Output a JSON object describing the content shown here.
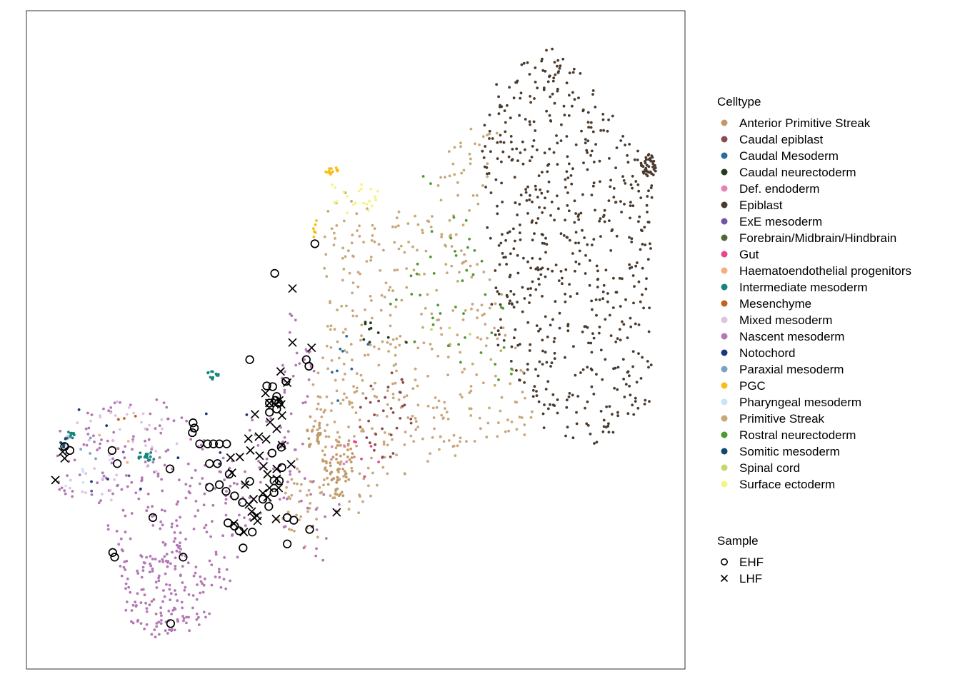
{
  "chart_data": {
    "type": "scatter",
    "title": "",
    "xlabel": "",
    "ylabel": "",
    "grid": false,
    "axes_visible": false,
    "legend_placement": "right",
    "legend_celltype": {
      "title": "Celltype",
      "entries": [
        {
          "label": "Anterior Primitive Streak",
          "color": "#c19a6b"
        },
        {
          "label": "Caudal epiblast",
          "color": "#8b4b4b"
        },
        {
          "label": "Caudal Mesoderm",
          "color": "#2e6a9e"
        },
        {
          "label": "Caudal neurectoderm",
          "color": "#233d1c"
        },
        {
          "label": "Def. endoderm",
          "color": "#e882b4"
        },
        {
          "label": "Epiblast",
          "color": "#4b3b2d"
        },
        {
          "label": "ExE mesoderm",
          "color": "#6f56a3"
        },
        {
          "label": "Forebrain/Midbrain/Hindbrain",
          "color": "#4b6836"
        },
        {
          "label": "Gut",
          "color": "#e8468c"
        },
        {
          "label": "Haematoendothelial progenitors",
          "color": "#f3af80"
        },
        {
          "label": "Intermediate mesoderm",
          "color": "#15867c"
        },
        {
          "label": "Mesenchyme",
          "color": "#c4621f"
        },
        {
          "label": "Mixed mesoderm",
          "color": "#dcc3e0"
        },
        {
          "label": "Nascent mesoderm",
          "color": "#b378b5"
        },
        {
          "label": "Notochord",
          "color": "#1b3484"
        },
        {
          "label": "Paraxial mesoderm",
          "color": "#7aa2c4"
        },
        {
          "label": "PGC",
          "color": "#f7be17"
        },
        {
          "label": "Pharyngeal mesoderm",
          "color": "#c8e4f6"
        },
        {
          "label": "Primitive Streak",
          "color": "#c9a77b"
        },
        {
          "label": "Rostral neurectoderm",
          "color": "#4e9a2e"
        },
        {
          "label": "Somitic mesoderm",
          "color": "#0d4a6b"
        },
        {
          "label": "Spinal cord",
          "color": "#c2d96b"
        },
        {
          "label": "Surface ectoderm",
          "color": "#f5f384"
        }
      ]
    },
    "legend_sample": {
      "title": "Sample",
      "entries": [
        {
          "label": "EHF",
          "shape": "circle"
        },
        {
          "label": "LHF",
          "shape": "cross"
        }
      ]
    },
    "xlim": [
      0,
      100
    ],
    "ylim": [
      0,
      100
    ],
    "clusters": [
      {
        "celltype": "Epiblast",
        "n": 620,
        "shape": "poly",
        "poly": [
          [
            74,
            92
          ],
          [
            79,
            95
          ],
          [
            86,
            89
          ],
          [
            93,
            79
          ],
          [
            95,
            76
          ],
          [
            95,
            40
          ],
          [
            88,
            35
          ],
          [
            86,
            34
          ],
          [
            79,
            36
          ],
          [
            75,
            41
          ],
          [
            72,
            47
          ],
          [
            70,
            55
          ],
          [
            70,
            66
          ],
          [
            69,
            79
          ],
          [
            70,
            88
          ]
        ]
      },
      {
        "celltype": "Epiblast",
        "n": 40,
        "shape": "ellipse",
        "cx": 94.5,
        "cy": 76.5,
        "rx": 1.2,
        "ry": 1.8
      },
      {
        "celltype": "Primitive Streak",
        "n": 430,
        "shape": "poly",
        "poly": [
          [
            65,
            83
          ],
          [
            72,
            83
          ],
          [
            71,
            76
          ],
          [
            68,
            68
          ],
          [
            73,
            55
          ],
          [
            78,
            36
          ],
          [
            70,
            33
          ],
          [
            62,
            32
          ],
          [
            55,
            27
          ],
          [
            49,
            21
          ],
          [
            44,
            20
          ],
          [
            44,
            40
          ],
          [
            46,
            55
          ],
          [
            44,
            66
          ],
          [
            47,
            72
          ],
          [
            50,
            73
          ],
          [
            57,
            70
          ],
          [
            62,
            73
          ]
        ]
      },
      {
        "celltype": "Primitive Streak",
        "n": 70,
        "shape": "poly",
        "poly": [
          [
            44,
            45
          ],
          [
            50,
            55
          ],
          [
            51,
            42
          ],
          [
            48,
            30
          ],
          [
            45,
            21
          ],
          [
            42,
            15
          ],
          [
            38,
            22
          ],
          [
            41,
            35
          ]
        ]
      },
      {
        "celltype": "Anterior Primitive Streak",
        "n": 55,
        "shape": "ellipse",
        "cx": 47.5,
        "cy": 31,
        "rx": 2.5,
        "ry": 5
      },
      {
        "celltype": "Anterior Primitive Streak",
        "n": 20,
        "shape": "ellipse",
        "cx": 43.5,
        "cy": 36,
        "rx": 1.2,
        "ry": 2.5
      },
      {
        "celltype": "Nascent mesoderm",
        "n": 340,
        "shape": "poly",
        "poly": [
          [
            4,
            36
          ],
          [
            9,
            39
          ],
          [
            15,
            41
          ],
          [
            21,
            41
          ],
          [
            26,
            36
          ],
          [
            31,
            33
          ],
          [
            34,
            38
          ],
          [
            38,
            46
          ],
          [
            40,
            56
          ],
          [
            44,
            46
          ],
          [
            42,
            30
          ],
          [
            48,
            25
          ],
          [
            45,
            16
          ],
          [
            40,
            20
          ],
          [
            37,
            25
          ],
          [
            34,
            22
          ],
          [
            30,
            10
          ],
          [
            26,
            6
          ],
          [
            20,
            5
          ],
          [
            16,
            8
          ],
          [
            14,
            18
          ],
          [
            9,
            25
          ],
          [
            5,
            27
          ]
        ]
      },
      {
        "celltype": "Nascent mesoderm",
        "n": 120,
        "shape": "poly",
        "poly": [
          [
            14,
            18
          ],
          [
            19,
            17
          ],
          [
            22,
            21
          ],
          [
            27,
            13
          ],
          [
            30,
            10
          ],
          [
            26,
            7
          ],
          [
            22,
            4
          ],
          [
            17,
            5
          ],
          [
            15,
            8
          ]
        ]
      },
      {
        "celltype": "Mixed mesoderm",
        "n": 45,
        "shape": "poly",
        "poly": [
          [
            4,
            36
          ],
          [
            12,
            41
          ],
          [
            20,
            40
          ],
          [
            24,
            33
          ],
          [
            18,
            27
          ],
          [
            10,
            24
          ],
          [
            5,
            28
          ]
        ]
      },
      {
        "celltype": "Intermediate mesoderm",
        "n": 18,
        "shape": "ellipse",
        "cx": 18.2,
        "cy": 32.3,
        "rx": 1.5,
        "ry": 0.7
      },
      {
        "celltype": "Intermediate mesoderm",
        "n": 12,
        "shape": "ellipse",
        "cx": 28.2,
        "cy": 44.6,
        "rx": 1.0,
        "ry": 0.6
      },
      {
        "celltype": "Intermediate mesoderm",
        "n": 10,
        "shape": "ellipse",
        "cx": 6.6,
        "cy": 35.5,
        "rx": 0.8,
        "ry": 0.6
      },
      {
        "celltype": "Somitic mesoderm",
        "n": 8,
        "shape": "ellipse",
        "cx": 5.5,
        "cy": 34.4,
        "rx": 0.6,
        "ry": 1.0
      },
      {
        "celltype": "Rostral neurectoderm",
        "n": 45,
        "shape": "poly",
        "poly": [
          [
            60,
            78
          ],
          [
            63,
            70
          ],
          [
            70,
            68
          ],
          [
            73,
            52
          ],
          [
            75,
            41
          ],
          [
            64,
            47
          ],
          [
            58,
            47
          ],
          [
            55,
            55
          ],
          [
            60,
            65
          ]
        ]
      },
      {
        "celltype": "PGC",
        "n": 14,
        "shape": "ellipse",
        "cx": 46.4,
        "cy": 75.7,
        "rx": 1.0,
        "ry": 0.6
      },
      {
        "celltype": "PGC",
        "n": 6,
        "shape": "ellipse",
        "cx": 43.9,
        "cy": 66.5,
        "rx": 0.6,
        "ry": 2.0
      },
      {
        "celltype": "Surface ectoderm",
        "n": 22,
        "shape": "ellipse",
        "cx": 49.5,
        "cy": 72.0,
        "rx": 4.0,
        "ry": 3.0
      },
      {
        "celltype": "Caudal epiblast",
        "n": 35,
        "shape": "poly",
        "poly": [
          [
            52,
            45
          ],
          [
            57,
            46
          ],
          [
            59,
            35
          ],
          [
            55,
            31
          ],
          [
            52,
            33
          ],
          [
            50,
            37
          ]
        ]
      },
      {
        "celltype": "Caudal neurectoderm",
        "n": 10,
        "shape": "ellipse",
        "cx": 55,
        "cy": 50,
        "rx": 5,
        "ry": 4
      },
      {
        "celltype": "Caudal Mesoderm",
        "n": 8,
        "shape": "ellipse",
        "cx": 48,
        "cy": 44,
        "rx": 8,
        "ry": 8
      },
      {
        "celltype": "Notochord",
        "n": 10,
        "shape": "ellipse",
        "cx": 20,
        "cy": 35,
        "rx": 15,
        "ry": 10
      },
      {
        "celltype": "Gut",
        "n": 6,
        "shape": "ellipse",
        "cx": 50,
        "cy": 32,
        "rx": 4,
        "ry": 4
      },
      {
        "celltype": "Def. endoderm",
        "n": 5,
        "shape": "ellipse",
        "cx": 48,
        "cy": 33,
        "rx": 3,
        "ry": 2
      },
      {
        "celltype": "Paraxial mesoderm",
        "n": 6,
        "shape": "ellipse",
        "cx": 10,
        "cy": 33,
        "rx": 4,
        "ry": 4
      },
      {
        "celltype": "Pharyngeal mesoderm",
        "n": 5,
        "shape": "ellipse",
        "cx": 9,
        "cy": 30,
        "rx": 5,
        "ry": 4
      },
      {
        "celltype": "Mesenchyme",
        "n": 3,
        "shape": "ellipse",
        "cx": 15,
        "cy": 38,
        "rx": 3,
        "ry": 2
      },
      {
        "celltype": "Spinal cord",
        "n": 3,
        "shape": "ellipse",
        "cx": 65,
        "cy": 50,
        "rx": 5,
        "ry": 5
      },
      {
        "celltype": "ExE mesoderm",
        "n": 3,
        "shape": "ellipse",
        "cx": 12,
        "cy": 30,
        "rx": 5,
        "ry": 4
      },
      {
        "celltype": "Haematoendothelial progenitors",
        "n": 3,
        "shape": "ellipse",
        "cx": 13,
        "cy": 33,
        "rx": 4,
        "ry": 3
      }
    ],
    "samples": [
      {
        "label": "EHF",
        "points": [
          [
            43.8,
            64.6
          ],
          [
            37.7,
            60.1
          ],
          [
            33.9,
            47.0
          ],
          [
            42.5,
            47.0
          ],
          [
            42.9,
            46.0
          ],
          [
            39.4,
            43.7
          ],
          [
            36.5,
            43.0
          ],
          [
            37.4,
            42.9
          ],
          [
            38.0,
            41.4
          ],
          [
            37.8,
            40.8
          ],
          [
            36.9,
            40.4
          ],
          [
            38.3,
            40.4
          ],
          [
            38.0,
            39.5
          ],
          [
            36.9,
            39.0
          ],
          [
            25.3,
            37.4
          ],
          [
            25.5,
            36.6
          ],
          [
            25.2,
            35.9
          ],
          [
            26.3,
            34.2
          ],
          [
            27.5,
            34.2
          ],
          [
            28.4,
            34.2
          ],
          [
            29.3,
            34.2
          ],
          [
            30.4,
            34.2
          ],
          [
            38.7,
            33.7
          ],
          [
            5.8,
            33.8
          ],
          [
            6.6,
            33.2
          ],
          [
            13.0,
            33.2
          ],
          [
            37.3,
            32.8
          ],
          [
            13.8,
            31.2
          ],
          [
            27.8,
            31.2
          ],
          [
            29.0,
            31.2
          ],
          [
            21.8,
            30.4
          ],
          [
            38.8,
            30.6
          ],
          [
            30.8,
            29.6
          ],
          [
            33.9,
            28.5
          ],
          [
            37.6,
            28.6
          ],
          [
            38.4,
            28.6
          ],
          [
            29.3,
            28.0
          ],
          [
            27.8,
            27.6
          ],
          [
            30.3,
            27.0
          ],
          [
            37.6,
            26.8
          ],
          [
            31.6,
            26.3
          ],
          [
            32.8,
            25.3
          ],
          [
            35.9,
            25.8
          ],
          [
            36.8,
            24.7
          ],
          [
            19.2,
            23.0
          ],
          [
            39.6,
            23.0
          ],
          [
            40.6,
            22.6
          ],
          [
            30.6,
            22.2
          ],
          [
            31.6,
            21.7
          ],
          [
            43.0,
            21.2
          ],
          [
            32.3,
            21.0
          ],
          [
            34.3,
            20.8
          ],
          [
            13.1,
            17.7
          ],
          [
            13.4,
            17.0
          ],
          [
            23.8,
            17.0
          ],
          [
            39.6,
            19.0
          ],
          [
            32.9,
            18.4
          ],
          [
            21.9,
            6.9
          ]
        ]
      },
      {
        "label": "LHF",
        "points": [
          [
            40.4,
            57.8
          ],
          [
            40.4,
            49.6
          ],
          [
            43.3,
            48.8
          ],
          [
            38.6,
            45.2
          ],
          [
            39.6,
            43.5
          ],
          [
            36.3,
            41.9
          ],
          [
            36.9,
            40.4
          ],
          [
            38.4,
            40.8
          ],
          [
            38.8,
            38.5
          ],
          [
            37.0,
            37.5
          ],
          [
            38.0,
            36.5
          ],
          [
            35.3,
            35.3
          ],
          [
            33.7,
            35.0
          ],
          [
            36.4,
            34.9
          ],
          [
            38.8,
            34.0
          ],
          [
            34.0,
            33.2
          ],
          [
            35.4,
            32.4
          ],
          [
            31.0,
            32.1
          ],
          [
            32.4,
            32.2
          ],
          [
            40.2,
            31.1
          ],
          [
            36.0,
            30.8
          ],
          [
            38.0,
            30.4
          ],
          [
            31.2,
            29.8
          ],
          [
            36.6,
            29.6
          ],
          [
            38.0,
            28.9
          ],
          [
            36.9,
            27.5
          ],
          [
            33.2,
            28.0
          ],
          [
            38.3,
            27.5
          ],
          [
            35.9,
            26.7
          ],
          [
            36.6,
            26.1
          ],
          [
            33.8,
            25.0
          ],
          [
            34.2,
            23.9
          ],
          [
            34.6,
            23.0
          ],
          [
            37.9,
            22.8
          ],
          [
            31.5,
            22.1
          ],
          [
            35.0,
            23.3
          ],
          [
            47.1,
            23.8
          ],
          [
            5.5,
            33.0
          ],
          [
            5.8,
            32.0
          ],
          [
            4.4,
            28.7
          ],
          [
            38.7,
            40.2
          ],
          [
            34.7,
            38.7
          ],
          [
            35.1,
            22.5
          ],
          [
            34.5,
            25.8
          ],
          [
            33.0,
            20.8
          ]
        ]
      }
    ]
  }
}
